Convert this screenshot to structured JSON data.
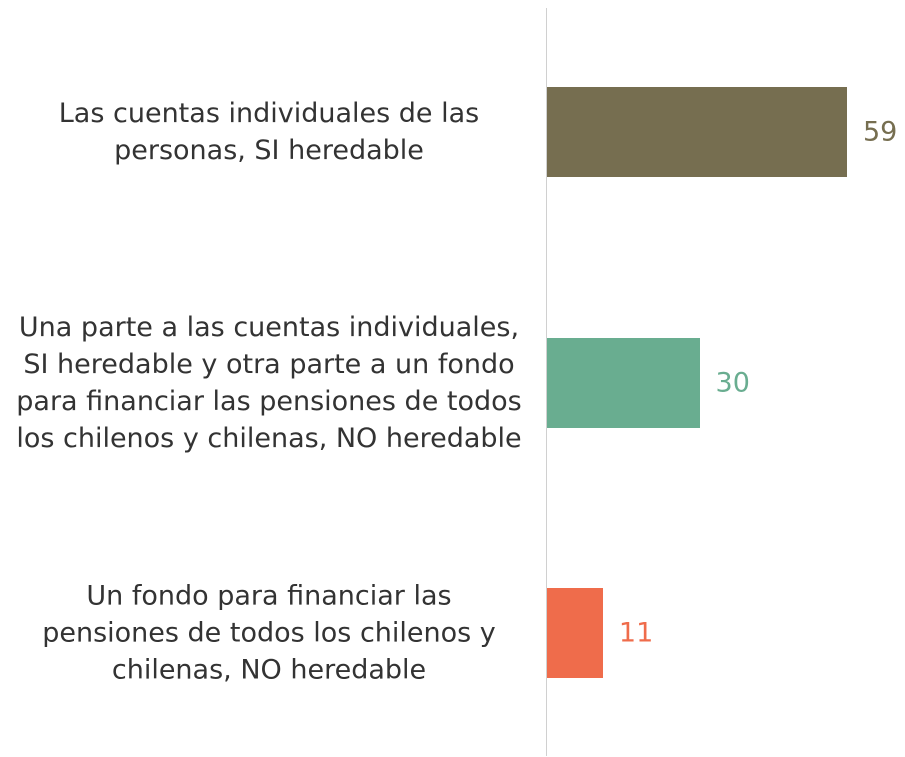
{
  "chart_data": {
    "type": "barh",
    "categories": [
      "Las cuentas individuales de las personas, SI heredable",
      "Una parte a las cuentas individuales, SI heredable y otra parte a un fondo para financiar las pensiones de todos los chilenos y chilenas, NO heredable",
      "Un fondo para financiar las pensiones de todos los chilenos y chilenas, NO heredable"
    ],
    "values": [
      59,
      30,
      11
    ],
    "colors": [
      "#766e50",
      "#69ad90",
      "#ef6c4b"
    ]
  }
}
